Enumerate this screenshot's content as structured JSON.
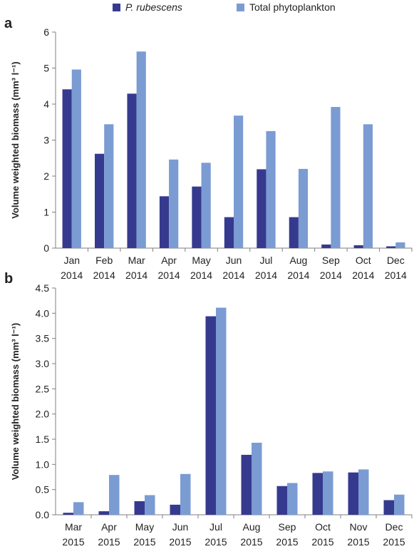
{
  "legend": {
    "series_a": "P. rubescens",
    "series_b": "Total phytoplankton"
  },
  "colors": {
    "series_a": "#363a8e",
    "series_b": "#7b9bd3",
    "axis": "#7f7f7f"
  },
  "panels": {
    "a": "a",
    "b": "b"
  },
  "chart_data": [
    {
      "type": "bar",
      "panel": "a",
      "title": "",
      "xlabel": "",
      "ylabel": "Volume weighted biomass (mm³ l⁻¹)",
      "ylim": [
        0,
        6
      ],
      "yticks": [
        "0",
        "1",
        "2",
        "3",
        "4",
        "5",
        "6"
      ],
      "grid": false,
      "legend_position": "top",
      "categories": [
        [
          "Jan",
          "2014"
        ],
        [
          "Feb",
          "2014"
        ],
        [
          "Mar",
          "2014"
        ],
        [
          "Apr",
          "2014"
        ],
        [
          "May",
          "2014"
        ],
        [
          "Jun",
          "2014"
        ],
        [
          "Jul",
          "2014"
        ],
        [
          "Aug",
          "2014"
        ],
        [
          "Sep",
          "2014"
        ],
        [
          "Oct",
          "2014"
        ],
        [
          "Dec",
          "2014"
        ]
      ],
      "series": [
        {
          "name": "P. rubescens",
          "values": [
            4.41,
            2.62,
            4.29,
            1.44,
            1.71,
            0.86,
            2.19,
            0.86,
            0.1,
            0.08,
            0.05
          ]
        },
        {
          "name": "Total phytoplankton",
          "values": [
            4.96,
            3.44,
            5.46,
            2.46,
            2.37,
            3.68,
            3.25,
            2.2,
            3.92,
            3.44,
            0.16
          ]
        }
      ]
    },
    {
      "type": "bar",
      "panel": "b",
      "title": "",
      "xlabel": "",
      "ylabel": "Volume weighted biomass (mm³ l⁻¹)",
      "ylim": [
        0,
        4.5
      ],
      "yticks": [
        "0.0",
        "0.5",
        "1.0",
        "1.5",
        "2.0",
        "2.5",
        "3.0",
        "3.5",
        "4.0",
        "4.5"
      ],
      "grid": false,
      "categories": [
        [
          "Mar",
          "2015"
        ],
        [
          "Apr",
          "2015"
        ],
        [
          "May",
          "2015"
        ],
        [
          "Jun",
          "2015"
        ],
        [
          "Jul",
          "2015"
        ],
        [
          "Aug",
          "2015"
        ],
        [
          "Sep",
          "2015"
        ],
        [
          "Oct",
          "2015"
        ],
        [
          "Nov",
          "2015"
        ],
        [
          "Dec",
          "2015"
        ]
      ],
      "series": [
        {
          "name": "P. rubescens",
          "values": [
            0.04,
            0.07,
            0.27,
            0.2,
            3.94,
            1.19,
            0.57,
            0.83,
            0.84,
            0.29
          ]
        },
        {
          "name": "Total phytoplankton",
          "values": [
            0.25,
            0.79,
            0.39,
            0.81,
            4.11,
            1.43,
            0.63,
            0.86,
            0.9,
            0.4
          ]
        }
      ]
    }
  ]
}
